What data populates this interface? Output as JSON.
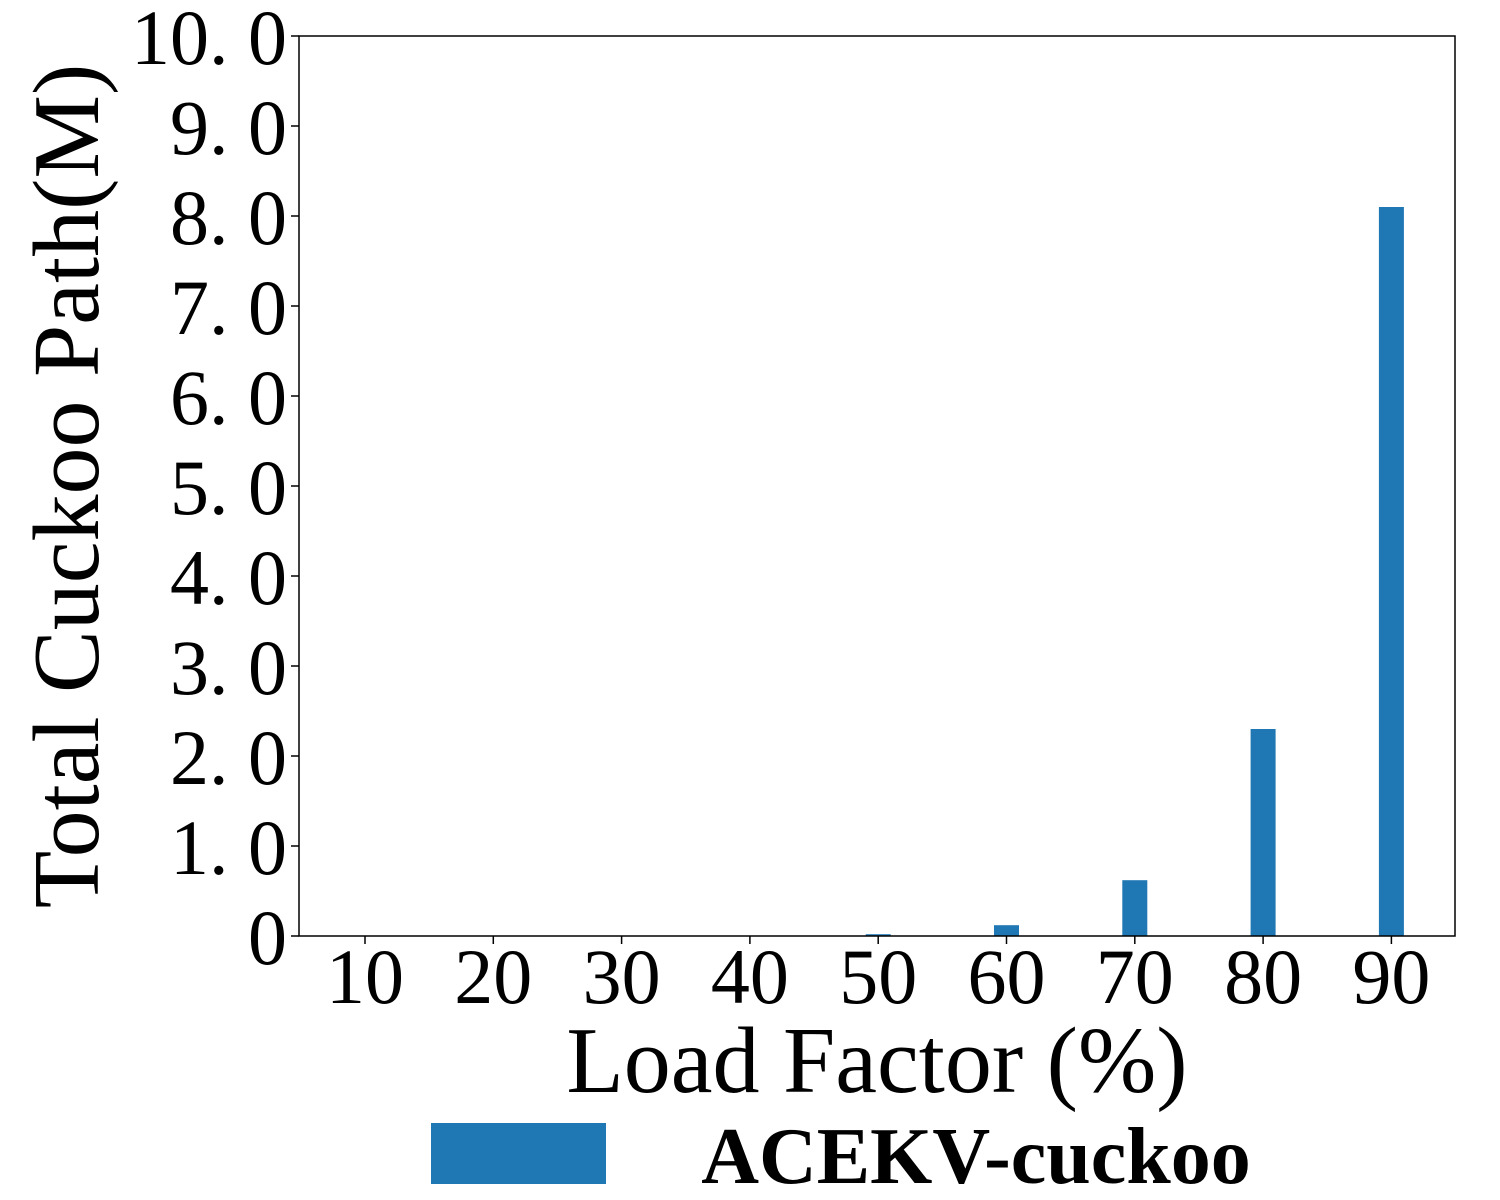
{
  "chart_data": {
    "type": "bar",
    "title": "",
    "xlabel": "Load Factor (%)",
    "ylabel": "Total Cuckoo Path(M)",
    "categories": [
      "10",
      "20",
      "30",
      "40",
      "50",
      "60",
      "70",
      "80",
      "90"
    ],
    "yticks": [
      "0",
      "1. 0",
      "2. 0",
      "3. 0",
      "4. 0",
      "5. 0",
      "6. 0",
      "7. 0",
      "8. 0",
      "9. 0",
      "10. 0"
    ],
    "ytick_values": [
      0,
      1,
      2,
      3,
      4,
      5,
      6,
      7,
      8,
      9,
      10
    ],
    "ylim": [
      0,
      10
    ],
    "series": [
      {
        "name": "ACEKV-cuckoo",
        "color": "#1f77b4",
        "values": [
          0,
          0,
          0,
          0,
          0.02,
          0.12,
          0.62,
          2.3,
          8.1
        ]
      }
    ],
    "legend": {
      "position": "bottom-center",
      "labels": [
        "ACEKV-cuckoo"
      ]
    },
    "grid": false
  }
}
